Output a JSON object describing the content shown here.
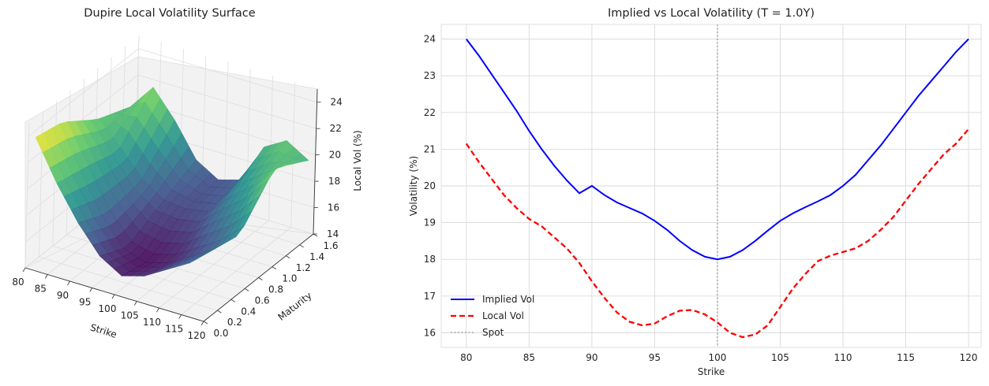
{
  "chart_data": [
    {
      "type": "surface3d",
      "title": "Dupire Local Volatility Surface",
      "xlabel": "Strike",
      "ylabel": "Maturity",
      "zlabel": "Local Vol (%)",
      "x_ticks": [
        "80",
        "85",
        "90",
        "95",
        "100",
        "105",
        "110",
        "115",
        "120"
      ],
      "y_ticks": [
        "0.0",
        "0.2",
        "0.4",
        "0.6",
        "0.8",
        "1.0",
        "1.2",
        "1.4",
        "1.6"
      ],
      "z_ticks": [
        "14",
        "16",
        "18",
        "20",
        "22",
        "24"
      ],
      "xlim": [
        80,
        120
      ],
      "ylim": [
        0,
        1.6
      ],
      "zlim": [
        14,
        25
      ],
      "colormap": "viridis",
      "maturities": [
        0.1,
        0.5,
        1.0,
        1.5
      ],
      "strikes": [
        80,
        85,
        90,
        95,
        100,
        105,
        110,
        115,
        120
      ],
      "local_vol_grid": [
        [
          23.5,
          20.5,
          18.0,
          16.0,
          15.0,
          15.5,
          16.5,
          17.5,
          19.0
        ],
        [
          23.0,
          20.0,
          17.0,
          15.0,
          14.5,
          15.0,
          16.0,
          17.0,
          18.5
        ],
        [
          21.1,
          19.2,
          17.3,
          16.3,
          16.2,
          16.5,
          18.1,
          19.5,
          21.5
        ],
        [
          20.0,
          22.0,
          20.0,
          17.5,
          16.5,
          17.0,
          20.0,
          21.0,
          20.0
        ]
      ]
    },
    {
      "type": "line",
      "title": "Implied vs Local Volatility (T = 1.0Y)",
      "xlabel": "Strike",
      "ylabel": "Volatility (%)",
      "xlim": [
        78,
        121
      ],
      "ylim": [
        15.6,
        24.4
      ],
      "x_ticks": [
        "80",
        "85",
        "90",
        "95",
        "100",
        "105",
        "110",
        "115",
        "120"
      ],
      "y_ticks": [
        "16",
        "17",
        "18",
        "19",
        "20",
        "21",
        "22",
        "23",
        "24"
      ],
      "grid": true,
      "legend_position": "lower-left",
      "x": [
        80,
        81,
        82,
        83,
        84,
        85,
        86,
        87,
        88,
        89,
        90,
        91,
        92,
        93,
        94,
        95,
        96,
        97,
        98,
        99,
        100,
        101,
        102,
        103,
        104,
        105,
        106,
        107,
        108,
        109,
        110,
        111,
        112,
        113,
        114,
        115,
        116,
        117,
        118,
        119,
        120
      ],
      "series": [
        {
          "name": "Implied Vol",
          "color": "#0000ff",
          "style": "solid",
          "values": [
            24.0,
            23.55,
            23.05,
            22.55,
            22.05,
            21.5,
            21.0,
            20.55,
            20.15,
            19.8,
            20.0,
            19.75,
            19.55,
            19.4,
            19.25,
            19.05,
            18.8,
            18.5,
            18.25,
            18.07,
            18.0,
            18.07,
            18.25,
            18.5,
            18.78,
            19.05,
            19.25,
            19.42,
            19.58,
            19.75,
            20.0,
            20.3,
            20.7,
            21.1,
            21.55,
            22.0,
            22.45,
            22.85,
            23.25,
            23.65,
            24.0
          ]
        },
        {
          "name": "Local Vol",
          "color": "#ff0000",
          "style": "dashed",
          "values": [
            21.15,
            20.65,
            20.2,
            19.75,
            19.4,
            19.1,
            18.9,
            18.6,
            18.3,
            17.9,
            17.4,
            16.95,
            16.55,
            16.3,
            16.2,
            16.25,
            16.45,
            16.6,
            16.62,
            16.5,
            16.28,
            16.0,
            15.88,
            15.95,
            16.2,
            16.7,
            17.2,
            17.6,
            17.95,
            18.1,
            18.2,
            18.3,
            18.5,
            18.8,
            19.15,
            19.6,
            20.05,
            20.45,
            20.85,
            21.15,
            21.55
          ]
        },
        {
          "name": "Spot",
          "color": "#9a9a9a",
          "style": "dotted",
          "vline_x": 100
        }
      ]
    }
  ]
}
